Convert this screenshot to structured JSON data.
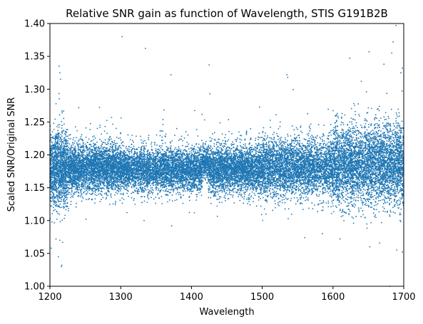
{
  "chart_data": {
    "type": "scatter",
    "title": "Relative SNR gain as function of Wavelength, STIS G191B2B",
    "xlabel": "Wavelength",
    "ylabel": "Scaled SNR/Original SNR",
    "xlim": [
      1200,
      1700
    ],
    "ylim": [
      1.0,
      1.4
    ],
    "x_ticks": [
      1200,
      1300,
      1400,
      1500,
      1600,
      1700
    ],
    "x_tick_labels": [
      "1200",
      "1300",
      "1400",
      "1500",
      "1600",
      "1700"
    ],
    "y_ticks": [
      1.0,
      1.05,
      1.1,
      1.15,
      1.2,
      1.25,
      1.3,
      1.35,
      1.4
    ],
    "y_tick_labels": [
      "1.00",
      "1.05",
      "1.10",
      "1.15",
      "1.20",
      "1.25",
      "1.30",
      "1.35",
      "1.40"
    ],
    "grid": false,
    "legend": "none",
    "marker_color": "#1f77b4",
    "series": [
      {
        "points": [
          [
            1213,
            1.335
          ],
          [
            1214,
            1.325
          ],
          [
            1215,
            1.315
          ],
          [
            1214,
            1.07
          ],
          [
            1216,
            1.03
          ],
          [
            1217,
            1.032
          ],
          [
            1212,
            1.045
          ],
          [
            1302,
            1.38
          ],
          [
            1335,
            1.362
          ],
          [
            1371,
            1.322
          ],
          [
            1425,
            1.337
          ],
          [
            1426,
            1.293
          ],
          [
            1535,
            1.322
          ],
          [
            1536,
            1.318
          ],
          [
            1640,
            1.312
          ],
          [
            1651,
            1.357
          ],
          [
            1672,
            1.338
          ],
          [
            1683,
            1.355
          ],
          [
            1685,
            1.372
          ],
          [
            1689,
            1.397
          ],
          [
            1696,
            1.325
          ],
          [
            1698,
            1.332
          ],
          [
            1652,
            1.06
          ],
          [
            1680,
            1.0
          ],
          [
            1690,
            1.055
          ],
          [
            1698,
            1.052
          ],
          [
            1560,
            1.074
          ],
          [
            1585,
            1.08
          ],
          [
            1610,
            1.072
          ],
          [
            1666,
            1.066
          ],
          [
            1372,
            1.092
          ],
          [
            1333,
            1.1
          ],
          [
            1251,
            1.102
          ],
          [
            1202,
            1.058
          ],
          [
            1203,
            1.098
          ]
        ]
      }
    ],
    "density_bands": [
      {
        "x_range": [
          1200,
          1225
        ],
        "mean": 1.18,
        "spread": 0.028,
        "count": 1400
      },
      {
        "x_range": [
          1225,
          1300
        ],
        "mean": 1.18,
        "spread": 0.018,
        "count": 3200
      },
      {
        "x_range": [
          1300,
          1415
        ],
        "mean": 1.178,
        "spread": 0.016,
        "count": 4200
      },
      {
        "x_range": [
          1415,
          1423
        ],
        "mean": 1.188,
        "spread": 0.012,
        "count": 260
      },
      {
        "x_range": [
          1423,
          1500
        ],
        "mean": 1.178,
        "spread": 0.018,
        "count": 3000
      },
      {
        "x_range": [
          1500,
          1600
        ],
        "mean": 1.18,
        "spread": 0.022,
        "count": 3600
      },
      {
        "x_range": [
          1600,
          1700
        ],
        "mean": 1.185,
        "spread": 0.03,
        "count": 4200
      }
    ]
  }
}
